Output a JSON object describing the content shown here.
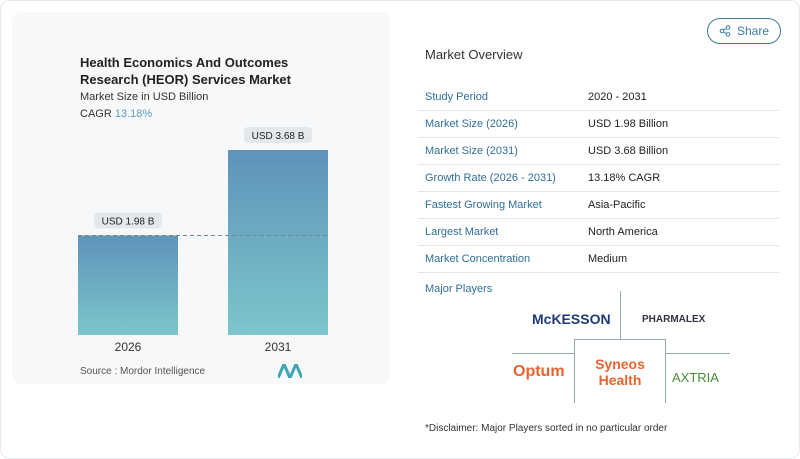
{
  "header": {
    "share_label": "Share",
    "share_icon": "share-icon"
  },
  "chart_data": {
    "type": "bar",
    "title": "Health Economics And Outcomes Research (HEOR) Services Market",
    "subtitle": "Market Size in USD Billion",
    "cagr_label": "CAGR",
    "cagr_value": "13.18%",
    "categories": [
      "2026",
      "2031"
    ],
    "values": [
      1.98,
      3.68
    ],
    "data_labels": [
      "USD 1.98 B",
      "USD 3.68 B"
    ],
    "colors": {
      "bar_top": "#5f93b9",
      "bar_bottom": "#7cc6cc",
      "accent": "#5b9bc2"
    },
    "reference_line": 1.98,
    "source": "Source :  Mordor Intelligence"
  },
  "overview": {
    "title": "Market Overview",
    "rows": [
      {
        "label": "Study Period",
        "value": "2020 - 2031"
      },
      {
        "label": "Market Size (2026)",
        "value": "USD 1.98 Billion"
      },
      {
        "label": "Market Size (2031)",
        "value": "USD 3.68 Billion"
      },
      {
        "label": "Growth Rate (2026 - 2031)",
        "value": "13.18% CAGR"
      },
      {
        "label": "Fastest Growing Market",
        "value": "Asia-Pacific"
      },
      {
        "label": "Largest Market",
        "value": "North America"
      },
      {
        "label": "Market Concentration",
        "value": "Medium"
      }
    ],
    "major_players_label": "Major Players",
    "players": [
      "McKESSON",
      "PHARMALEX",
      "Optum",
      "Syneos Health",
      "AXTRIA"
    ],
    "disclaimer": "*Disclaimer: Major Players sorted in no particular order"
  }
}
